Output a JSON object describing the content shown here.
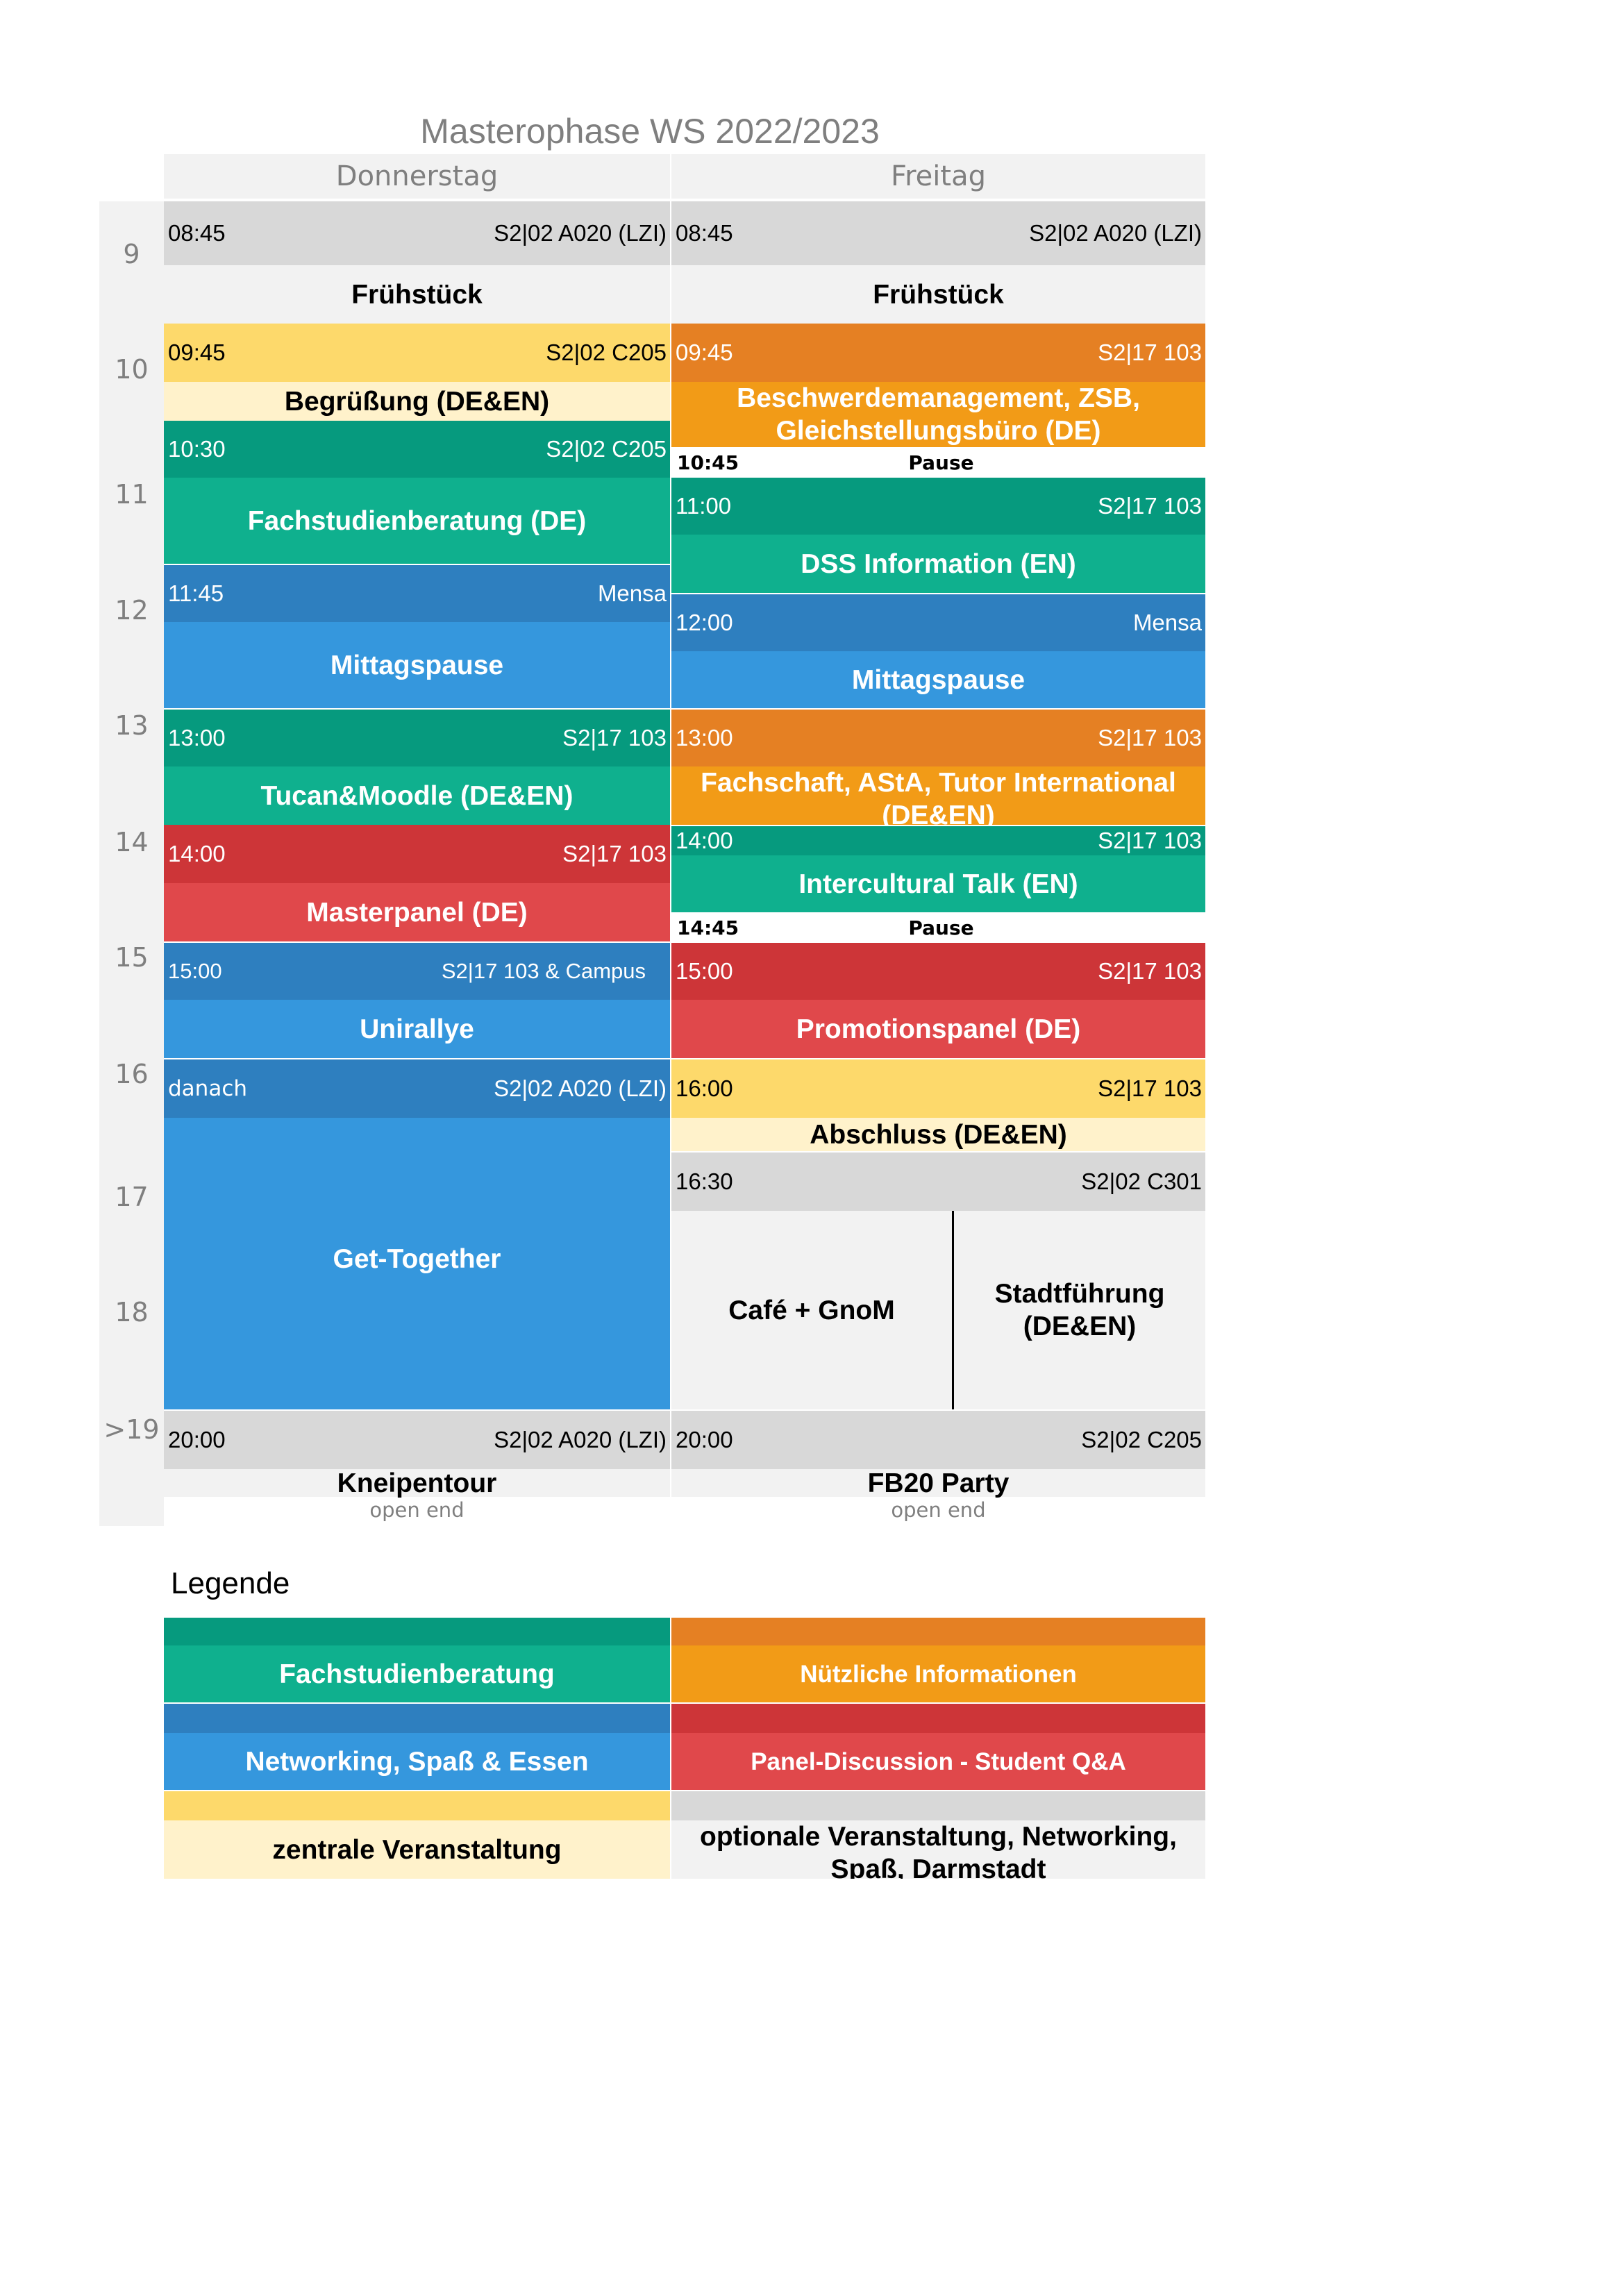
{
  "title": "Masterophase WS 2022/2023",
  "days": [
    "Donnerstag",
    "Freitag"
  ],
  "hours": [
    "9",
    "10",
    "11",
    "12",
    "13",
    "14",
    "15",
    "16",
    "17",
    "18",
    ">19"
  ],
  "colors": {
    "green_dark": "#069a7e",
    "green": "#0fb08e",
    "blue_dark": "#2e7fbf",
    "blue": "#3597dd",
    "yellow_dark": "#fdd96b",
    "yellow_light": "#fff2cb",
    "orange_dark": "#e58023",
    "orange": "#f29b17",
    "red_dark": "#cd3538",
    "red": "#e0484b",
    "grey_dark": "#d8d8d8",
    "grey_light": "#f2f2f2"
  },
  "thursday": {
    "e1": {
      "time": "08:45",
      "room": "S2|02 A020 (LZI)",
      "name": "Frühstück"
    },
    "e2": {
      "time": "09:45",
      "room": "S2|02 C205",
      "name": "Begrüßung (DE&EN)"
    },
    "e3": {
      "time": "10:30",
      "room": "S2|02 C205",
      "name": "Fachstudienberatung (DE)"
    },
    "e4": {
      "time": "11:45",
      "room": "Mensa",
      "name": "Mittagspause"
    },
    "e5": {
      "time": "13:00",
      "room": "S2|17 103",
      "name": "Tucan&Moodle (DE&EN)"
    },
    "e6": {
      "time": "14:00",
      "room": "S2|17 103",
      "name": "Masterpanel (DE)"
    },
    "e7": {
      "time": "15:00",
      "room": "S2|17 103 & Campus",
      "name": "Unirallye"
    },
    "e8": {
      "time": "danach",
      "room": "S2|02 A020 (LZI)",
      "name": "Get-Together"
    },
    "e9": {
      "time": "20:00",
      "room": "S2|02 A020 (LZI)",
      "name": "Kneipentour",
      "note": "open end"
    }
  },
  "friday": {
    "e1": {
      "time": "08:45",
      "room": "S2|02 A020 (LZI)",
      "name": "Frühstück"
    },
    "e2": {
      "time": "09:45",
      "room": "S2|17 103",
      "name": "Beschwerdemanagement, ZSB, Gleichstellungsbüro (DE)"
    },
    "p1": {
      "time": "10:45",
      "label": "Pause"
    },
    "e3": {
      "time": "11:00",
      "room": "S2|17 103",
      "name": "DSS Information (EN)"
    },
    "e4": {
      "time": "12:00",
      "room": "Mensa",
      "name": "Mittagspause"
    },
    "e5": {
      "time": "13:00",
      "room": "S2|17 103",
      "name": "Fachschaft, AStA, Tutor International (DE&EN)"
    },
    "e6": {
      "time": "14:00",
      "room": "S2|17 103",
      "name": "Intercultural Talk (EN)"
    },
    "p2": {
      "time": "14:45",
      "label": "Pause"
    },
    "e7": {
      "time": "15:00",
      "room": "S2|17 103",
      "name": "Promotionspanel (DE)"
    },
    "e8": {
      "time": "16:00",
      "room": "S2|17 103",
      "name": "Abschluss (DE&EN)"
    },
    "e9": {
      "time": "16:30",
      "room": "S2|02 C301",
      "name_a": "Café + GnoM",
      "name_b": "Stadtführung (DE&EN)"
    },
    "e10": {
      "time": "20:00",
      "room": "S2|02 C205",
      "name": "FB20 Party",
      "note": "open end"
    }
  },
  "legend": {
    "title": "Legende",
    "items": [
      "Fachstudienberatung",
      "Nützliche Informationen",
      "Networking, Spaß & Essen",
      "Panel-Discussion - Student Q&A",
      "zentrale Veranstaltung",
      "optionale Veranstaltung, Networking, Spaß, Darmstadt"
    ]
  }
}
